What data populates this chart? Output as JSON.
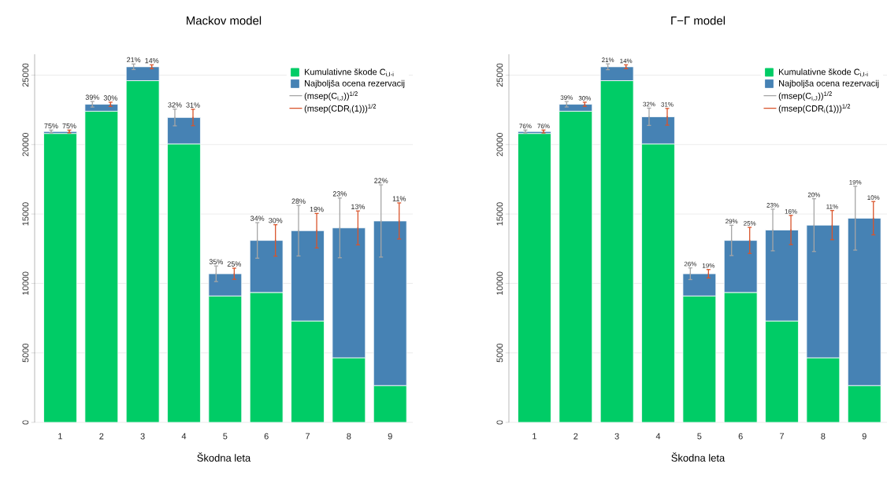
{
  "chart_data": [
    {
      "type": "bar",
      "title": "Mackov model",
      "xlabel": "Škodna leta",
      "categories": [
        "1",
        "2",
        "3",
        "4",
        "5",
        "6",
        "7",
        "8",
        "9"
      ],
      "stacked": true,
      "grid": "y",
      "legend": "top right",
      "ylim": [
        0,
        26500
      ],
      "yticks": [
        0,
        5000,
        10000,
        15000,
        20000,
        25000
      ],
      "series": [
        {
          "name": "Kumulativne škode C$_{i,I-i}$",
          "color": "#00cc66",
          "values": [
            20800,
            22400,
            24600,
            20050,
            9100,
            9350,
            7300,
            4650,
            2650
          ]
        },
        {
          "name": "Najboljša ocena rezervacij",
          "color": "#4682b4",
          "values": [
            140,
            500,
            1000,
            1900,
            1600,
            3750,
            6500,
            9350,
            11850
          ]
        },
        {
          "name": "(msep(C$_{i,J}$))$^{1/2}$",
          "type": "scatter",
          "marker": "none",
          "color": "#a6a6a6",
          "x": [
            "1",
            "2",
            "3",
            "4",
            "5",
            "6",
            "7",
            "8",
            "9"
          ],
          "values": [
            20940,
            22900,
            25600,
            21950,
            10700,
            13100,
            13800,
            14000,
            14500
          ],
          "errors": [
            100,
            200,
            200,
            600,
            560,
            1280,
            1820,
            2150,
            2600
          ]
        },
        {
          "name": "(msep(CDR$_{i}$(1)))$^{1/2}$",
          "type": "scatter",
          "marker": "none",
          "color": "#d9542b",
          "x": [
            "1",
            "2",
            "3",
            "4",
            "5",
            "6",
            "7",
            "8",
            "9"
          ],
          "values": [
            20940,
            22900,
            25600,
            21950,
            10700,
            13100,
            13800,
            14000,
            14500
          ],
          "errors": [
            100,
            150,
            140,
            590,
            400,
            1130,
            1240,
            1220,
            1300
          ]
        }
      ],
      "annotations": [
        {
          "text": "75%",
          "x": "1",
          "y": 20940
        },
        {
          "text": "39%",
          "x": "2",
          "y": 22900
        },
        {
          "text": "21%",
          "x": "3",
          "y": 25600
        },
        {
          "text": "32%",
          "x": "4",
          "y": 21950
        },
        {
          "text": "35%",
          "x": "5",
          "y": 10700
        },
        {
          "text": "34%",
          "x": "6",
          "y": 13100
        },
        "28%",
        "23%",
        "22%",
        {
          "text": "75%",
          "x": "1",
          "y": 20940
        },
        {
          "text": "30%",
          "x": "2",
          "y": 22900
        },
        {
          "text": "14%",
          "x": "3",
          "y": 25600
        },
        {
          "text": "31%",
          "x": "4",
          "y": 21950
        },
        {
          "text": "25%",
          "x": "5",
          "y": 10700
        },
        {
          "text": "30%",
          "x": "6",
          "y": 13100
        },
        {
          "text": "19%",
          "x": "7",
          "y": 13800
        },
        {
          "text": "13%",
          "x": "8",
          "y": 14000
        },
        {
          "text": "11%",
          "x": "9",
          "y": 14500
        }
      ]
    },
    {
      "type": "bar",
      "title": "Γ−Γ model",
      "xlabel": "Škodna leta",
      "categories": [
        "1",
        "2",
        "3",
        "4",
        "5",
        "6",
        "7",
        "8",
        "9"
      ],
      "stacked": true,
      "grid": "y",
      "legend": "top right",
      "ylim": [
        0,
        26500
      ],
      "yticks": [
        0,
        5000,
        10000,
        15000,
        20000,
        25000
      ],
      "series": [
        {
          "name": "Kumulativne škode C$_{i,I-i}$",
          "color": "#00cc66",
          "values": [
            20800,
            22400,
            24600,
            20050,
            9100,
            9350,
            7300,
            4650,
            2650
          ]
        },
        {
          "name": "Najboljša ocena rezervacij",
          "color": "#4682b4",
          "values": [
            140,
            500,
            1000,
            1950,
            1600,
            3750,
            6550,
            9550,
            12050
          ]
        },
        {
          "name": "(msep(C$_{i,J}$))$^{1/2}$",
          "type": "scatter",
          "marker": "none",
          "color": "#a6a6a6",
          "x": [
            "1",
            "2",
            "3",
            "4",
            "5",
            "6",
            "7",
            "8",
            "9"
          ],
          "values": [
            20940,
            22900,
            25600,
            22000,
            10700,
            13100,
            13850,
            14200,
            14700
          ],
          "errors": [
            105,
            195,
            210,
            620,
            420,
            1090,
            1500,
            1900,
            2300
          ]
        },
        {
          "name": "(msep(CDR$_{i}$(1)))$^{1/2}$",
          "type": "scatter",
          "marker": "none",
          "color": "#d9542b",
          "x": [
            "1",
            "2",
            "3",
            "4",
            "5",
            "6",
            "7",
            "8",
            "9"
          ],
          "values": [
            20940,
            22900,
            25600,
            22000,
            10700,
            13100,
            13850,
            14200,
            14700
          ],
          "errors": [
            105,
            150,
            140,
            600,
            300,
            940,
            1050,
            1050,
            1200
          ]
        }
      ],
      "annotations": [
        {
          "text": "76%",
          "x": "1",
          "y": 20940
        },
        {
          "text": "39%",
          "x": "2",
          "y": 22900
        },
        {
          "text": "21%",
          "x": "3",
          "y": 25600
        },
        {
          "text": "32%",
          "x": "4",
          "y": 22000
        },
        {
          "text": "26%",
          "x": "5",
          "y": 10700
        },
        {
          "text": "29%",
          "x": "6",
          "y": 13100
        },
        "23%",
        "20%",
        "19%",
        {
          "text": "76%",
          "x": "1",
          "y": 20940
        },
        {
          "text": "30%",
          "x": "2",
          "y": 22900
        },
        {
          "text": "14%",
          "x": "3",
          "y": 25600
        },
        {
          "text": "31%",
          "x": "4",
          "y": 22000
        },
        {
          "text": "19%",
          "x": "5",
          "y": 10700
        },
        {
          "text": "25%",
          "x": "6",
          "y": 13100
        },
        {
          "text": "16%",
          "x": "7",
          "y": 13850
        },
        {
          "text": "11%",
          "x": "8",
          "y": 14200
        },
        {
          "text": "10%",
          "x": "9",
          "y": 14700
        }
      ]
    }
  ]
}
